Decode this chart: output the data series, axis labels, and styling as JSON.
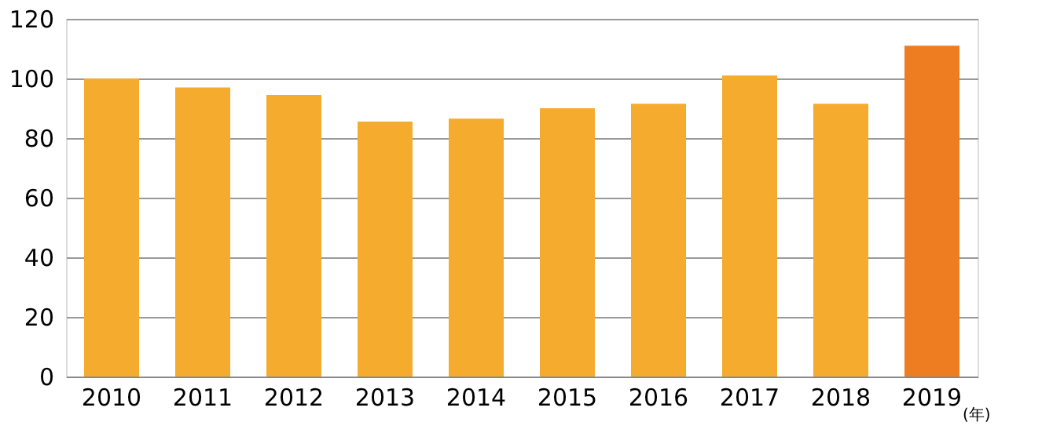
{
  "chart_data": {
    "type": "bar",
    "xlabel": "(年)",
    "categories": [
      "2010",
      "2011",
      "2012",
      "2013",
      "2014",
      "2015",
      "2016",
      "2017",
      "2018",
      "2019"
    ],
    "values": [
      100,
      97,
      94.5,
      85.5,
      86.5,
      90,
      91.5,
      101,
      91.5,
      111
    ],
    "colors": [
      "#f5ab2e",
      "#f5ab2e",
      "#f5ab2e",
      "#f5ab2e",
      "#f5ab2e",
      "#f5ab2e",
      "#f5ab2e",
      "#f5ab2e",
      "#f5ab2e",
      "#ee7d22"
    ],
    "ylim": [
      0,
      120
    ],
    "yticks": [
      0,
      20,
      40,
      60,
      80,
      100,
      120
    ],
    "grid": "y"
  }
}
